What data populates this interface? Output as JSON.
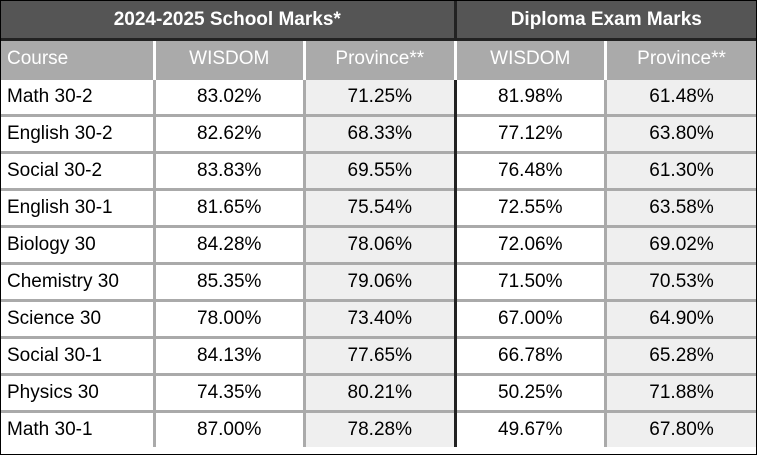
{
  "group_headers": {
    "school": "2024-2025 School Marks*",
    "diploma": "Diploma Exam Marks"
  },
  "column_headers": {
    "course": "Course",
    "school_wisdom": "WISDOM",
    "school_province": "Province**",
    "diploma_wisdom": "WISDOM",
    "diploma_province": "Province**"
  },
  "rows": [
    {
      "course": "Math 30-2",
      "school_wisdom": "83.02%",
      "school_province": "71.25%",
      "diploma_wisdom": "81.98%",
      "diploma_province": "61.48%"
    },
    {
      "course": "English 30-2",
      "school_wisdom": "82.62%",
      "school_province": "68.33%",
      "diploma_wisdom": "77.12%",
      "diploma_province": "63.80%"
    },
    {
      "course": "Social 30-2",
      "school_wisdom": "83.83%",
      "school_province": "69.55%",
      "diploma_wisdom": "76.48%",
      "diploma_province": "61.30%"
    },
    {
      "course": "English 30-1",
      "school_wisdom": "81.65%",
      "school_province": "75.54%",
      "diploma_wisdom": "72.55%",
      "diploma_province": "63.58%"
    },
    {
      "course": "Biology 30",
      "school_wisdom": "84.28%",
      "school_province": "78.06%",
      "diploma_wisdom": "72.06%",
      "diploma_province": "69.02%"
    },
    {
      "course": "Chemistry 30",
      "school_wisdom": "85.35%",
      "school_province": "79.06%",
      "diploma_wisdom": "71.50%",
      "diploma_province": "70.53%"
    },
    {
      "course": "Science 30",
      "school_wisdom": "78.00%",
      "school_province": "73.40%",
      "diploma_wisdom": "67.00%",
      "diploma_province": "64.90%"
    },
    {
      "course": "Social 30-1",
      "school_wisdom": "84.13%",
      "school_province": "77.65%",
      "diploma_wisdom": "66.78%",
      "diploma_province": "65.28%"
    },
    {
      "course": "Physics 30",
      "school_wisdom": "74.35%",
      "school_province": "80.21%",
      "diploma_wisdom": "50.25%",
      "diploma_province": "71.88%"
    },
    {
      "course": "Math 30-1",
      "school_wisdom": "87.00%",
      "school_province": "78.28%",
      "diploma_wisdom": "49.67%",
      "diploma_province": "67.80%"
    }
  ],
  "colors": {
    "group_header_bg": "#555555",
    "column_header_bg": "#aaaaaa",
    "province_cell_bg": "#efefef",
    "grid_line": "#aaaaaa",
    "group_divider": "#222222"
  }
}
